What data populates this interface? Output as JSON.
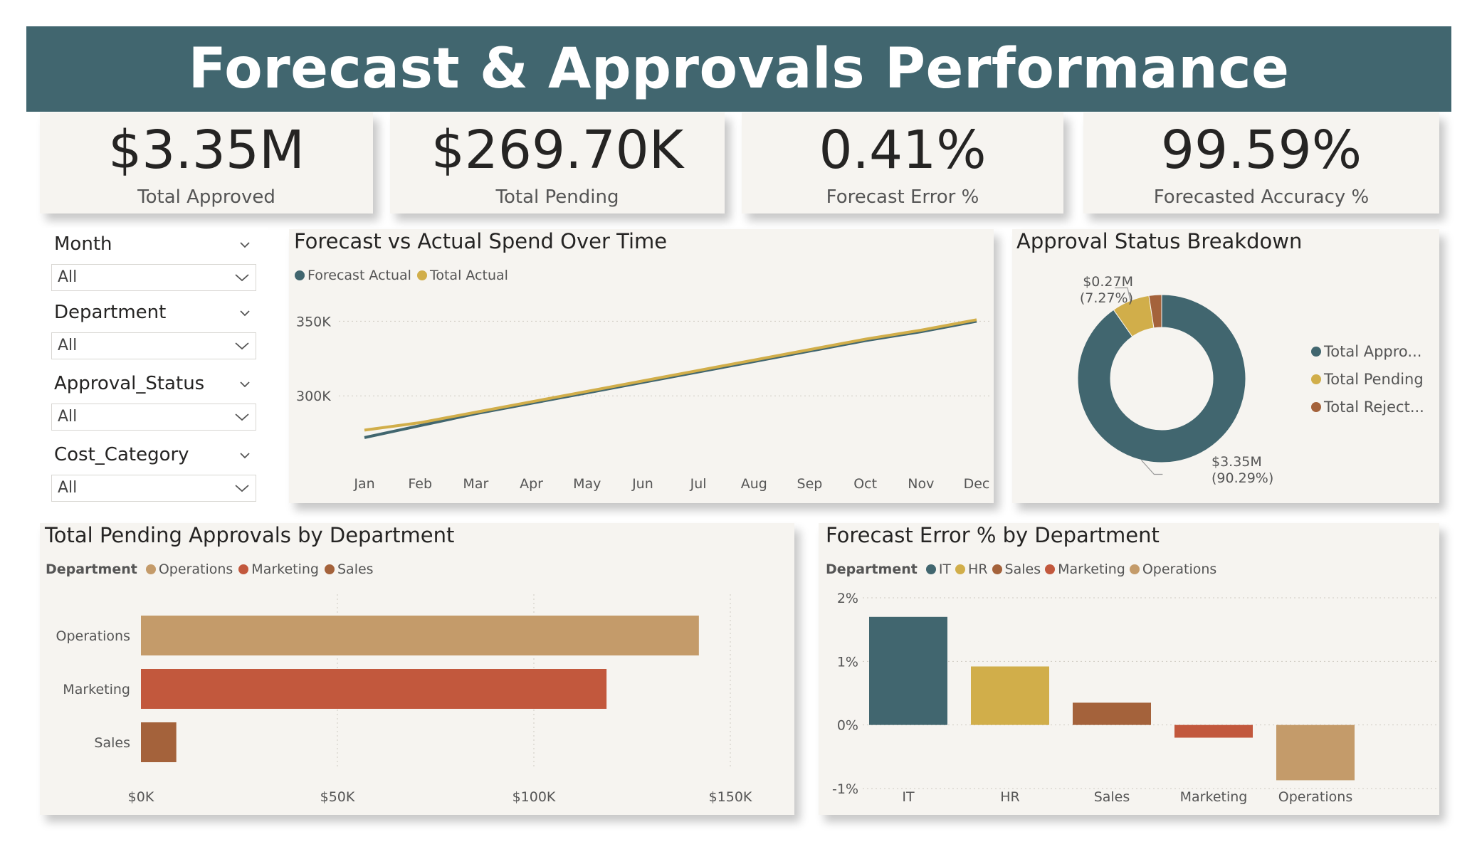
{
  "title": "Forecast & Approvals Performance",
  "colors": {
    "banner": "#41666f",
    "teal": "#41666f",
    "gold": "#d1ae4a",
    "brown": "#a4623b",
    "red": "#c2583d",
    "tan": "#c49b6a",
    "card": "#f6f4f0"
  },
  "kpis": [
    {
      "value": "$3.35M",
      "label": "Total Approved"
    },
    {
      "value": "$269.70K",
      "label": "Total Pending"
    },
    {
      "value": "0.41%",
      "label": "Forecast Error %"
    },
    {
      "value": "99.59%",
      "label": "Forecasted Accuracy %"
    }
  ],
  "slicers": [
    {
      "title": "Month",
      "value": "All"
    },
    {
      "title": "Department",
      "value": "All"
    },
    {
      "title": "Approval_Status",
      "value": "All"
    },
    {
      "title": "Cost_Category",
      "value": "All"
    }
  ],
  "line_chart": {
    "title": "Forecast vs Actual Spend Over Time",
    "legend": [
      "Forecast Actual",
      "Total Actual"
    ]
  },
  "donut_chart": {
    "title": "Approval Status Breakdown",
    "legend": [
      "Total Appro...",
      "Total Pending",
      "Total Reject..."
    ],
    "label_small_1": "$0.27M",
    "label_small_2": "(7.27%)",
    "label_big_1": "$3.35M",
    "label_big_2": "(90.29%)"
  },
  "hbar_chart": {
    "title": "Total Pending Approvals by Department",
    "legend_title": "Department",
    "legend": [
      "Operations",
      "Marketing",
      "Sales"
    ]
  },
  "vbar_chart": {
    "title": "Forecast Error % by Department",
    "legend_title": "Department",
    "legend": [
      "IT",
      "HR",
      "Sales",
      "Marketing",
      "Operations"
    ]
  },
  "chart_data": [
    {
      "type": "line",
      "title": "Forecast vs Actual Spend Over Time",
      "categories": [
        "Jan",
        "Feb",
        "Mar",
        "Apr",
        "May",
        "Jun",
        "Jul",
        "Aug",
        "Sep",
        "Oct",
        "Nov",
        "Dec"
      ],
      "series": [
        {
          "name": "Forecast Actual",
          "color": "#41666f",
          "values": [
            272000,
            280000,
            288000,
            295000,
            302000,
            309000,
            316000,
            323000,
            330000,
            337000,
            343000,
            350000
          ]
        },
        {
          "name": "Total Actual",
          "color": "#d1ae4a",
          "values": [
            277000,
            282000,
            289000,
            296000,
            303000,
            310000,
            317000,
            324000,
            331000,
            338000,
            344000,
            351000
          ]
        }
      ],
      "yticks": [
        {
          "v": 300000,
          "label": "300K"
        },
        {
          "v": 350000,
          "label": "350K"
        }
      ],
      "ylim": [
        260000,
        365000
      ],
      "grid": true
    },
    {
      "type": "pie",
      "title": "Approval Status Breakdown",
      "categories": [
        "Total Approved",
        "Total Pending",
        "Total Rejected"
      ],
      "values": [
        90.29,
        7.27,
        2.44
      ],
      "colors": [
        "#41666f",
        "#d1ae4a",
        "#a4623b"
      ]
    },
    {
      "type": "bar",
      "orientation": "horizontal",
      "title": "Total Pending Approvals by Department",
      "categories": [
        "Operations",
        "Marketing",
        "Sales"
      ],
      "values": [
        142000,
        118500,
        9000
      ],
      "colors": [
        "#c49b6a",
        "#c2583d",
        "#a4623b"
      ],
      "xticks": [
        {
          "v": 0,
          "label": "$0K"
        },
        {
          "v": 50000,
          "label": "$50K"
        },
        {
          "v": 100000,
          "label": "$100K"
        },
        {
          "v": 150000,
          "label": "$150K"
        }
      ],
      "xlim": [
        0,
        150000
      ]
    },
    {
      "type": "bar",
      "title": "Forecast Error % by Department",
      "categories": [
        "IT",
        "HR",
        "Sales",
        "Marketing",
        "Operations"
      ],
      "values": [
        1.7,
        0.92,
        0.35,
        -0.2,
        -0.87
      ],
      "colors": [
        "#41666f",
        "#d1ae4a",
        "#a4623b",
        "#c2583d",
        "#c49b6a"
      ],
      "yticks": [
        {
          "v": 2,
          "label": "2%"
        },
        {
          "v": 1,
          "label": "1%"
        },
        {
          "v": 0,
          "label": "0%"
        },
        {
          "v": -1,
          "label": "-1%"
        }
      ],
      "ylim": [
        -1,
        2
      ]
    }
  ]
}
